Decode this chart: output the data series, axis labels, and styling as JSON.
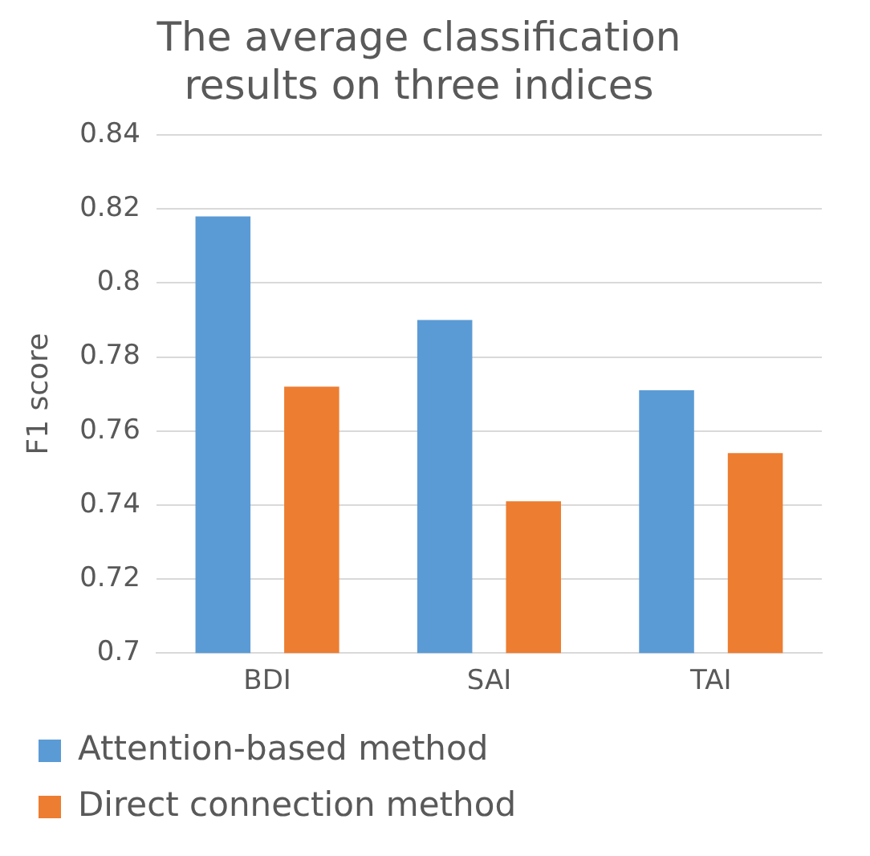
{
  "chart_data": {
    "type": "bar",
    "title": "The average classification results on three indices",
    "ylabel": "F1 score",
    "categories": [
      "BDI",
      "SAI",
      "TAI"
    ],
    "series": [
      {
        "name": "Attention-based method",
        "color": "#5b9bd5",
        "values": [
          0.818,
          0.79,
          0.771
        ]
      },
      {
        "name": "Direct connection method",
        "color": "#ed7d31",
        "values": [
          0.772,
          0.741,
          0.754
        ]
      }
    ],
    "ylim": [
      0.7,
      0.84
    ],
    "yticks": [
      0.7,
      0.72,
      0.74,
      0.76,
      0.78,
      0.8,
      0.82,
      0.84
    ],
    "grid": "y",
    "legend": "bottom"
  }
}
